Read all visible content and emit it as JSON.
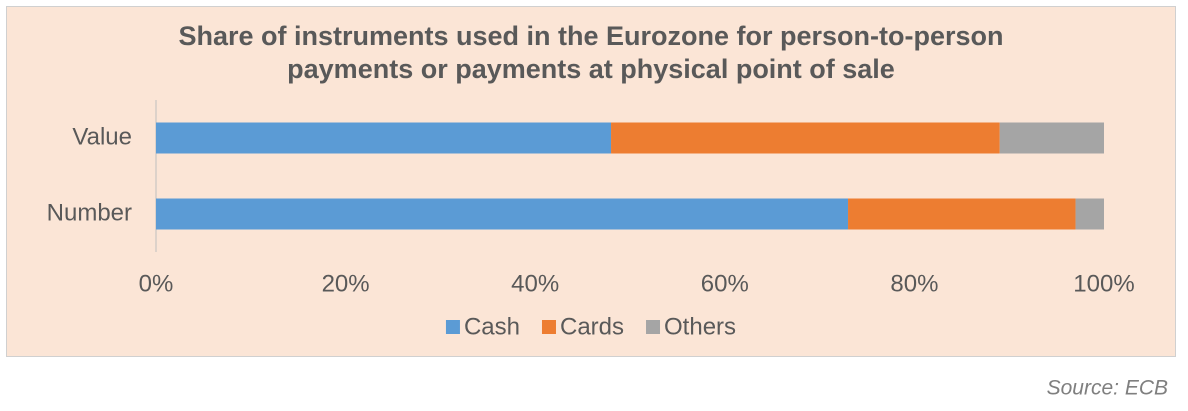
{
  "chart_data": {
    "type": "stacked-barh",
    "title": "Share of instruments used in the Eurozone for person-to-person payments or payments at physical point of sale",
    "categories": [
      "Value",
      "Number"
    ],
    "series": [
      {
        "name": "Cash",
        "color": "#5b9bd5",
        "values": [
          48,
          73
        ]
      },
      {
        "name": "Cards",
        "color": "#ed7d31",
        "values": [
          41,
          24
        ]
      },
      {
        "name": "Others",
        "color": "#a5a5a5",
        "values": [
          11,
          3
        ]
      }
    ],
    "xlim": [
      0,
      100
    ],
    "xticks": [
      {
        "value": 0,
        "label": "0%"
      },
      {
        "value": 20,
        "label": "20%"
      },
      {
        "value": 40,
        "label": "40%"
      },
      {
        "value": 60,
        "label": "60%"
      },
      {
        "value": 80,
        "label": "80%"
      },
      {
        "value": 100,
        "label": "100%"
      }
    ],
    "legend": "bottom",
    "source": "Source: ECB"
  }
}
